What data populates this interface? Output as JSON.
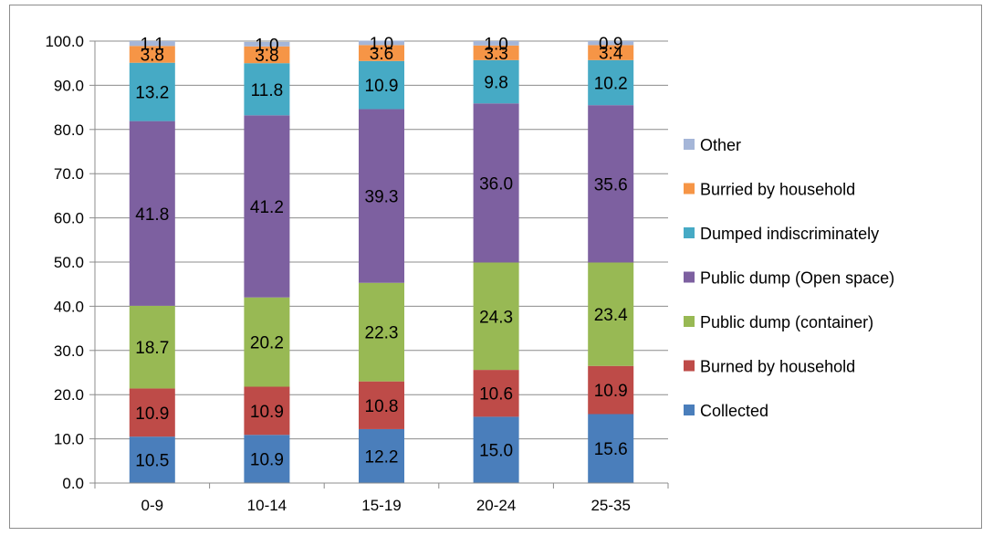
{
  "chart_data": {
    "type": "bar",
    "stacked": true,
    "categories": [
      "0-9",
      "10-14",
      "15-19",
      "20-24",
      "25-35"
    ],
    "ylim": [
      0,
      100
    ],
    "yticks": [
      "0.0",
      "10.0",
      "20.0",
      "30.0",
      "40.0",
      "50.0",
      "60.0",
      "70.0",
      "80.0",
      "90.0",
      "100.0"
    ],
    "grid": true,
    "legend_position": "right",
    "series": [
      {
        "name": "Collected",
        "color": "#4a7ebb",
        "values": [
          10.5,
          10.9,
          12.2,
          15.0,
          15.6
        ],
        "labels": [
          "10.5",
          "10.9",
          "12.2",
          "15.0",
          "15.6"
        ]
      },
      {
        "name": "Burned by household",
        "color": "#be4b48",
        "values": [
          10.9,
          10.9,
          10.8,
          10.6,
          10.9
        ],
        "labels": [
          "10.9",
          "10.9",
          "10.8",
          "10.6",
          "10.9"
        ]
      },
      {
        "name": "Public dump (container)",
        "color": "#98b954",
        "values": [
          18.7,
          20.2,
          22.3,
          24.3,
          23.4
        ],
        "labels": [
          "18.7",
          "20.2",
          "22.3",
          "24.3",
          "23.4"
        ]
      },
      {
        "name": "Public dump (Open space)",
        "color": "#7d60a0",
        "values": [
          41.8,
          41.2,
          39.3,
          36.0,
          35.6
        ],
        "labels": [
          "41.8",
          "41.2",
          "39.3",
          "36.0",
          "35.6"
        ]
      },
      {
        "name": "Dumped indiscriminately",
        "color": "#46aac5",
        "values": [
          13.2,
          11.8,
          10.9,
          9.8,
          10.2
        ],
        "labels": [
          "13.2",
          "11.8",
          "10.9",
          "9.8",
          "10.2"
        ]
      },
      {
        "name": "Burried by household",
        "color": "#f69546",
        "values": [
          3.8,
          3.8,
          3.6,
          3.3,
          3.4
        ],
        "labels": [
          "3.8",
          "3.8",
          "3.6",
          "3.3",
          "3.4"
        ]
      },
      {
        "name": "Other",
        "color": "#a5b6d8",
        "values": [
          1.1,
          1.0,
          1.0,
          1.0,
          0.9
        ],
        "labels": [
          "1.1",
          "1.0",
          "1.0",
          "1.0",
          "0.9"
        ]
      }
    ]
  }
}
